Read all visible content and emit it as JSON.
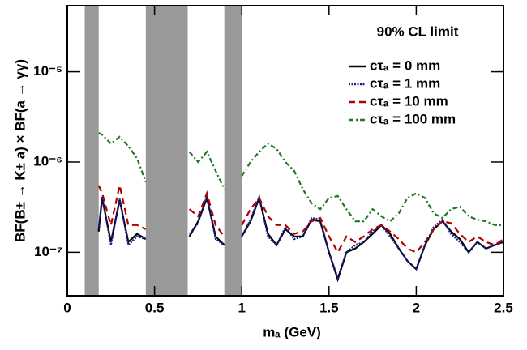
{
  "chart_data": {
    "type": "line",
    "legend_title": "90% CL limit",
    "x_label": "mₐ (GeV)",
    "y_label": "BF(B± → K± a) × BF(a → γγ)",
    "xlim": [
      0,
      2.5
    ],
    "xticks": [
      0,
      0.5,
      1,
      1.5,
      2,
      2.5
    ],
    "ylim": [
      3.3e-08,
      5.4e-05
    ],
    "yticks": [
      {
        "value": 1e-07,
        "label": "10⁻⁷"
      },
      {
        "value": 1e-06,
        "label": "10⁻⁶"
      },
      {
        "value": 1e-05,
        "label": "10⁻⁵"
      }
    ],
    "log_y": true,
    "legend": "upper right",
    "shaded_regions": [
      [
        0.1,
        0.18
      ],
      [
        0.45,
        0.69
      ],
      [
        0.9,
        1.0
      ]
    ],
    "shade_color": "#999999",
    "x": [
      0.18,
      0.2,
      0.25,
      0.3,
      0.35,
      0.4,
      0.45,
      0.55,
      0.7,
      0.75,
      0.8,
      0.85,
      0.9,
      0.95,
      1.0,
      1.05,
      1.1,
      1.15,
      1.2,
      1.25,
      1.3,
      1.35,
      1.4,
      1.45,
      1.5,
      1.55,
      1.6,
      1.65,
      1.7,
      1.75,
      1.8,
      1.85,
      1.9,
      1.95,
      2.0,
      2.05,
      2.1,
      2.15,
      2.2,
      2.25,
      2.3,
      2.35,
      2.4,
      2.45,
      2.5
    ],
    "series": [
      {
        "name": "cτₐ = 0 mm",
        "color": "#000000",
        "dash": "none",
        "values": [
          1.7e-07,
          4e-07,
          1.3e-07,
          3.8e-07,
          1.3e-07,
          1.6e-07,
          1.4e-07,
          null,
          1.5e-07,
          2.2e-07,
          4e-07,
          1.5e-07,
          1.2e-07,
          null,
          1.5e-07,
          2.2e-07,
          4e-07,
          1.6e-07,
          1.2e-07,
          1.8e-07,
          1.5e-07,
          1.5e-07,
          2.3e-07,
          2.2e-07,
          1e-07,
          5e-08,
          1e-07,
          1.1e-07,
          1.3e-07,
          1.6e-07,
          2e-07,
          1.6e-07,
          1.1e-07,
          8e-08,
          6.5e-08,
          1.2e-07,
          1.8e-07,
          2.2e-07,
          1.7e-07,
          1.4e-07,
          1e-07,
          1.3e-07,
          1.1e-07,
          1.2e-07,
          1.3e-07
        ]
      },
      {
        "name": "cτₐ = 1 mm",
        "color": "#1c1c8c",
        "dash": "2,1.5",
        "values": [
          1.8e-07,
          4.1e-07,
          1.2e-07,
          3.9e-07,
          1.2e-07,
          1.5e-07,
          1.4e-07,
          null,
          1.6e-07,
          2.1e-07,
          4.2e-07,
          1.4e-07,
          1.2e-07,
          null,
          1.5e-07,
          2.3e-07,
          4.1e-07,
          1.5e-07,
          1.2e-07,
          1.9e-07,
          1.4e-07,
          1.5e-07,
          2.4e-07,
          2.3e-07,
          1e-07,
          5.2e-08,
          1e-07,
          1.2e-07,
          1.3e-07,
          1.7e-07,
          2e-07,
          1.5e-07,
          1.1e-07,
          8e-08,
          6.5e-08,
          1.2e-07,
          1.9e-07,
          2.3e-07,
          1.6e-07,
          1.3e-07,
          1e-07,
          1.3e-07,
          1.1e-07,
          1.2e-07,
          1.3e-07
        ]
      },
      {
        "name": "cτₐ = 10 mm",
        "color": "#b00000",
        "dash": "8,5",
        "values": [
          5.5e-07,
          4.5e-07,
          2e-07,
          5.5e-07,
          2e-07,
          2e-07,
          1.8e-07,
          null,
          3e-07,
          2.5e-07,
          4.5e-07,
          2e-07,
          1.5e-07,
          null,
          2e-07,
          3e-07,
          4e-07,
          2.5e-07,
          2e-07,
          2e-07,
          1.6e-07,
          1.7e-07,
          2.2e-07,
          2.4e-07,
          1.5e-07,
          1e-07,
          1.5e-07,
          1.3e-07,
          1.5e-07,
          1.8e-07,
          2e-07,
          1.7e-07,
          1.4e-07,
          1.1e-07,
          1e-07,
          1.3e-07,
          1.8e-07,
          2.2e-07,
          2.1e-07,
          1.6e-07,
          1.3e-07,
          1.5e-07,
          1.3e-07,
          1.2e-07,
          1.4e-07
        ]
      },
      {
        "name": "cτₐ = 100 mm",
        "color": "#1f7a1f",
        "dash": "6,3,2,3",
        "values": [
          2.1e-06,
          2e-06,
          1.6e-06,
          1.9e-06,
          1.5e-06,
          1.1e-06,
          6e-07,
          null,
          1.3e-06,
          1e-06,
          1.3e-06,
          8e-07,
          5e-07,
          null,
          7e-07,
          1e-06,
          1.3e-06,
          1.6e-06,
          1.4e-06,
          1e-06,
          8e-07,
          5e-07,
          3.5e-07,
          3e-07,
          4e-07,
          4.2e-07,
          3e-07,
          2.2e-07,
          2.2e-07,
          3e-07,
          2.5e-07,
          2.2e-07,
          2.7e-07,
          4e-07,
          4.5e-07,
          4e-07,
          2.7e-07,
          2.4e-07,
          3e-07,
          3.2e-07,
          2.5e-07,
          2.3e-07,
          2.2e-07,
          2e-07,
          2e-07
        ]
      }
    ]
  }
}
